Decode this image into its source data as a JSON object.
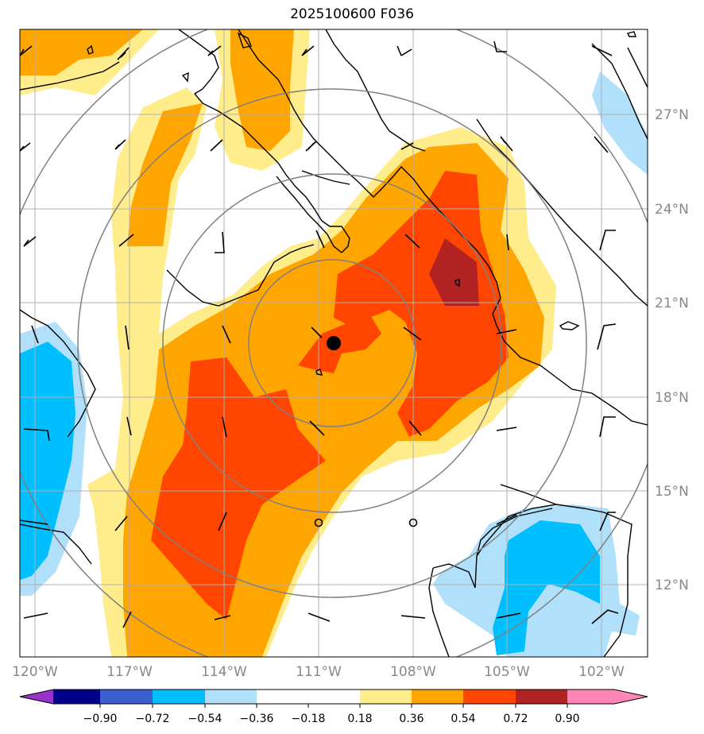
{
  "title": "2025100600 F036",
  "map": {
    "longitude_labels": [
      "120°W",
      "117°W",
      "114°W",
      "111°W",
      "108°W",
      "105°W",
      "102°W"
    ],
    "latitude_labels": [
      "12°N",
      "15°N",
      "18°N",
      "21°N",
      "24°N",
      "27°N"
    ],
    "storm_center": {
      "lon": -110.5,
      "lat": 19.6
    },
    "range_rings": 4,
    "colors": {
      "grid": "#b0b0b0",
      "coast": "#000000",
      "ring": "#808080",
      "barb": "#000000"
    }
  },
  "colorbar": {
    "tick_labels": [
      "−0.90",
      "−0.72",
      "−0.54",
      "−0.36",
      "−0.18",
      "0.18",
      "0.36",
      "0.54",
      "0.72",
      "0.90"
    ],
    "colors": [
      "#9932cc",
      "#00008b",
      "#3b5fce",
      "#00bfff",
      "#b0e0fa",
      "#ffffff",
      "#ffec8b",
      "#ffa500",
      "#ff4500",
      "#b22222",
      "#ff85b5"
    ],
    "extend": "both"
  }
}
